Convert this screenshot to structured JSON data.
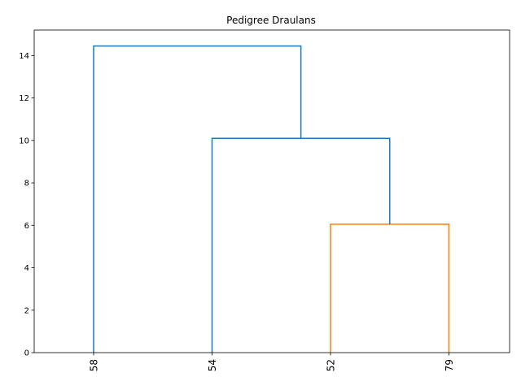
{
  "chart_data": {
    "type": "dendrogram",
    "title": "Pedigree Draulans",
    "leaves": [
      "58",
      "54",
      "52",
      "79"
    ],
    "ylim": [
      0,
      15.2
    ],
    "yticks": [
      0,
      2,
      4,
      6,
      8,
      10,
      12,
      14
    ],
    "merges": [
      {
        "left": "52",
        "right": "79",
        "height": 6.05,
        "color": "#ff7f0e"
      },
      {
        "left": "54",
        "right": "52+79",
        "height": 10.1,
        "color": "#1f77b4"
      },
      {
        "left": "58",
        "right": "54+52+79",
        "height": 14.45,
        "color": "#1f77b4"
      }
    ],
    "colors": {
      "cluster": "#ff7f0e",
      "above_threshold": "#1f77b4"
    }
  }
}
